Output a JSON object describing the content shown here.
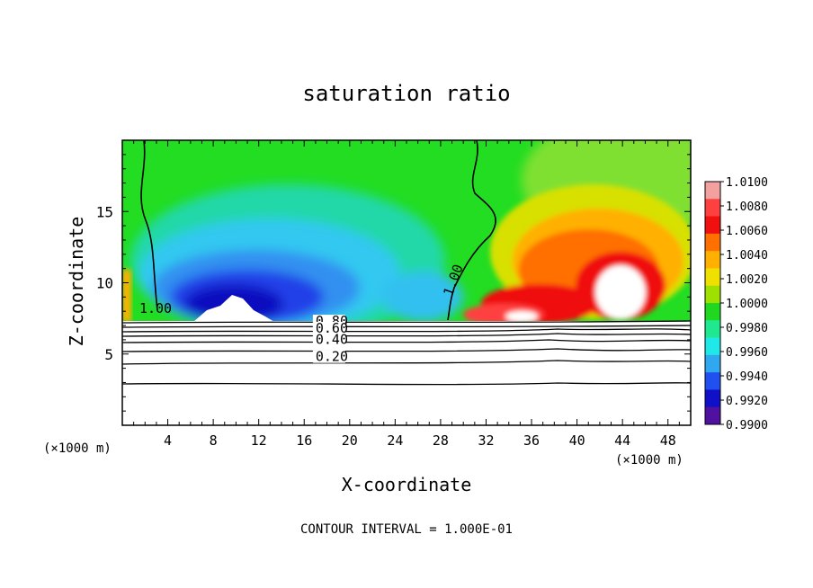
{
  "chart_data": {
    "type": "heatmap",
    "title": "saturation ratio",
    "xlabel": "X-coordinate",
    "ylabel": "Z-coordinate",
    "x_unit_label": "(×1000 m)",
    "footer": "CONTOUR INTERVAL = 1.000E-01",
    "xlim": [
      0,
      50
    ],
    "ylim": [
      0,
      20
    ],
    "x_ticks": [
      4,
      8,
      12,
      16,
      20,
      24,
      28,
      32,
      36,
      40,
      44,
      48
    ],
    "x_tick_labels": [
      "4",
      "8",
      "12",
      "16",
      "20",
      "24",
      "28",
      "32",
      "36",
      "40",
      "44",
      "48"
    ],
    "y_ticks": [
      5,
      10,
      15
    ],
    "y_tick_labels": [
      "5",
      "10",
      "15"
    ],
    "colorbar": {
      "min": 0.99,
      "max": 1.01,
      "labels": [
        "1.0100",
        "1.0080",
        "1.0060",
        "1.0040",
        "1.0020",
        "1.0000",
        "0.9980",
        "0.9960",
        "0.9940",
        "0.9920",
        "0.9900"
      ],
      "colors": [
        "#f2a0a0",
        "#ff4040",
        "#f01010",
        "#ff7000",
        "#ffb000",
        "#f0e000",
        "#a0e000",
        "#20d820",
        "#20e890",
        "#20e8e8",
        "#30a8f0",
        "#2050f0",
        "#1010c8",
        "#5010a0"
      ]
    },
    "contour_labels": [
      {
        "text": "1.00",
        "x": 1.5,
        "z": 7.9
      },
      {
        "text": "1.00",
        "x": 29.0,
        "z": 9.0
      },
      {
        "text": "0.80",
        "x": 17.0,
        "z": 7.0
      },
      {
        "text": "0.60",
        "x": 17.0,
        "z": 6.5
      },
      {
        "text": "0.40",
        "x": 17.0,
        "z": 5.7
      },
      {
        "text": "0.20",
        "x": 17.0,
        "z": 4.5
      }
    ],
    "contours_below_cloud_base": [
      0.2,
      0.4,
      0.5,
      0.6,
      0.7,
      0.8,
      0.9
    ],
    "cloud_base_z": 7.3
  }
}
